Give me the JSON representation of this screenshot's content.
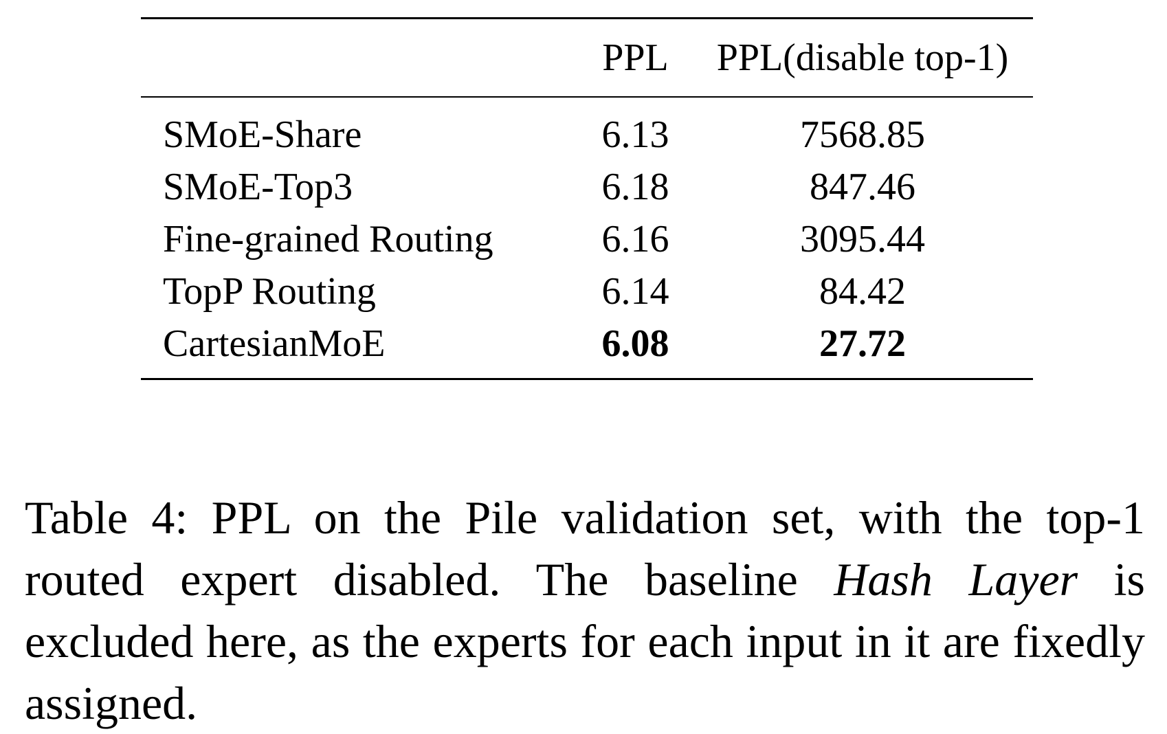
{
  "table": {
    "headers": [
      "",
      "PPL",
      "PPL(disable top-1)"
    ],
    "rows": [
      {
        "method": "SMoE-Share",
        "ppl": "6.13",
        "ppl_disable": "7568.85"
      },
      {
        "method": "SMoE-Top3",
        "ppl": "6.18",
        "ppl_disable": "847.46"
      },
      {
        "method": "Fine-grained Routing",
        "ppl": "6.16",
        "ppl_disable": "3095.44"
      },
      {
        "method": "TopP Routing",
        "ppl": "6.14",
        "ppl_disable": "84.42"
      },
      {
        "method": "CartesianMoE",
        "ppl": "6.08",
        "ppl_disable": "27.72"
      }
    ]
  },
  "caption": {
    "prefix": "Table 4: PPL on the Pile validation set, with the top-1 routed expert disabled. The baseline ",
    "italic": "Hash Layer",
    "suffix": " is excluded here, as the experts for each input in it are fixedly assigned."
  }
}
